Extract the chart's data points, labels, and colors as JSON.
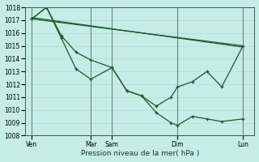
{
  "xlabel": "Pression niveau de la mer( hPa )",
  "bg_color": "#c5ece6",
  "grid_color": "#ddf0ec",
  "line_color": "#1a5c28",
  "ylim": [
    1008,
    1018
  ],
  "yticks": [
    1008,
    1009,
    1010,
    1011,
    1012,
    1013,
    1014,
    1015,
    1016,
    1017,
    1018
  ],
  "xlim": [
    0,
    14
  ],
  "day_labels": [
    "Ven",
    "Mar",
    "Sam",
    "Dim",
    "Lun"
  ],
  "day_positions": [
    0.4,
    4.0,
    5.3,
    9.3,
    13.3
  ],
  "vline_positions": [
    0.4,
    4.0,
    5.3,
    9.3,
    13.3
  ],
  "lines": [
    {
      "x": [
        0.4,
        13.3
      ],
      "y": [
        1017.1,
        1015.0
      ],
      "marker": false
    },
    {
      "x": [
        0.4,
        13.3
      ],
      "y": [
        1017.2,
        1014.9
      ],
      "marker": false
    },
    {
      "x": [
        0.4,
        1.3,
        2.2,
        3.1,
        4.0,
        5.3,
        6.2,
        7.1,
        8.0,
        8.9,
        9.3,
        10.2,
        11.1,
        12.0,
        13.3
      ],
      "y": [
        1017.1,
        1018.0,
        1015.8,
        1014.5,
        1013.9,
        1013.3,
        1011.5,
        1011.1,
        1009.8,
        1009.0,
        1008.8,
        1009.5,
        1009.3,
        1009.1,
        1009.3
      ],
      "marker": true
    },
    {
      "x": [
        0.4,
        1.3,
        2.2,
        3.1,
        4.0,
        5.3,
        6.2,
        7.1,
        8.0,
        8.9,
        9.3,
        10.2,
        11.1,
        12.0,
        13.3
      ],
      "y": [
        1017.1,
        1018.0,
        1015.6,
        1013.2,
        1012.4,
        1013.3,
        1011.5,
        1011.1,
        1010.3,
        1011.0,
        1011.8,
        1012.2,
        1013.0,
        1011.8,
        1015.0
      ],
      "marker": true
    }
  ]
}
